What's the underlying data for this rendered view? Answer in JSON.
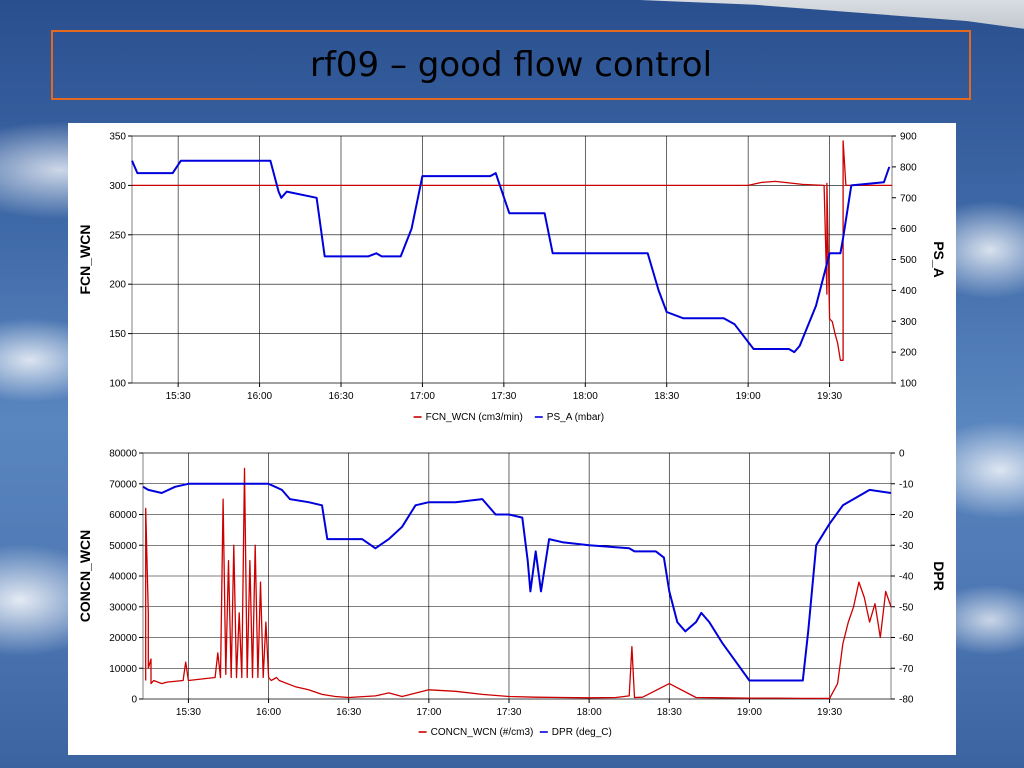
{
  "slide": {
    "title": "rf09 – good flow control"
  },
  "colors": {
    "series_red": "#cc0000",
    "series_blue": "#0000dd",
    "title_border": "#e2691d"
  },
  "chart_data": [
    {
      "type": "line",
      "xlim": [
        "15:13",
        "19:53"
      ],
      "x_ticks": [
        "15:30",
        "16:00",
        "16:30",
        "17:00",
        "17:30",
        "18:00",
        "18:30",
        "19:00",
        "19:30"
      ],
      "ylabel_left": "FCN_WCN",
      "ylabel_right": "PS_A",
      "ylim_left": [
        100,
        350
      ],
      "ylim_right": [
        100,
        900
      ],
      "y_ticks_left": [
        "100",
        "150",
        "200",
        "250",
        "300",
        "350"
      ],
      "y_ticks_right": [
        "100",
        "200",
        "300",
        "400",
        "500",
        "600",
        "700",
        "800",
        "900"
      ],
      "grid": true,
      "legend_position": "bottom",
      "series": [
        {
          "name": "FCN_WCN (cm3/min)",
          "axis": "left",
          "color": "#cc0000",
          "x": [
            "15:13",
            "15:40",
            "16:00",
            "16:30",
            "17:00",
            "17:30",
            "18:00",
            "18:30",
            "19:00",
            "19:05",
            "19:10",
            "19:20",
            "19:28",
            "19:29",
            "19:29",
            "19:30",
            "19:31",
            "19:32",
            "19:33",
            "19:34",
            "19:35",
            "19:35",
            "19:36",
            "19:37",
            "19:40",
            "19:53"
          ],
          "y": [
            300,
            300,
            300,
            300,
            300,
            300,
            300,
            300,
            300,
            303,
            304,
            301,
            300,
            190,
            302,
            165,
            162,
            150,
            140,
            123,
            123,
            345,
            300,
            300,
            300,
            300
          ]
        },
        {
          "name": "PS_A (mbar)",
          "axis": "right",
          "color": "#0000dd",
          "x": [
            "15:13",
            "15:15",
            "15:28",
            "15:31",
            "16:04",
            "16:07",
            "16:08",
            "16:10",
            "16:21",
            "16:24",
            "16:40",
            "16:43",
            "16:45",
            "16:52",
            "16:56",
            "17:00",
            "17:25",
            "17:27",
            "17:32",
            "17:45",
            "17:48",
            "18:23",
            "18:27",
            "18:30",
            "18:36",
            "18:51",
            "18:55",
            "19:02",
            "19:15",
            "19:17",
            "19:19",
            "19:25",
            "19:30",
            "19:34",
            "19:35",
            "19:38",
            "19:50",
            "19:52"
          ],
          "y": [
            820,
            780,
            780,
            820,
            820,
            720,
            700,
            720,
            700,
            510,
            510,
            520,
            510,
            510,
            600,
            770,
            770,
            780,
            650,
            650,
            520,
            520,
            400,
            330,
            310,
            310,
            290,
            210,
            210,
            200,
            220,
            350,
            520,
            520,
            570,
            740,
            750,
            800
          ]
        }
      ]
    },
    {
      "type": "line",
      "xlim": [
        "15:13",
        "19:53"
      ],
      "x_ticks": [
        "15:30",
        "16:00",
        "16:30",
        "17:00",
        "17:30",
        "18:00",
        "18:30",
        "19:00",
        "19:30"
      ],
      "ylabel_left": "CONCN_WCN",
      "ylabel_right": "DPR",
      "ylim_left": [
        0,
        80000
      ],
      "ylim_right": [
        -80,
        0
      ],
      "y_ticks_left": [
        "0",
        "10000",
        "20000",
        "30000",
        "40000",
        "50000",
        "60000",
        "70000",
        "80000"
      ],
      "y_ticks_right": [
        "-80",
        "-70",
        "-60",
        "-50",
        "-40",
        "-30",
        "-20",
        "-10",
        "0"
      ],
      "grid": true,
      "legend_position": "bottom",
      "series": [
        {
          "name": "CONCN_WCN (#/cm3)",
          "axis": "left",
          "color": "#cc0000",
          "x": [
            "15:14",
            "15:14",
            "15:15",
            "15:15",
            "15:16",
            "15:16",
            "15:17",
            "15:20",
            "15:22",
            "15:28",
            "15:29",
            "15:30",
            "15:40",
            "15:41",
            "15:42",
            "15:43",
            "15:44",
            "15:45",
            "15:46",
            "15:47",
            "15:48",
            "15:49",
            "15:50",
            "15:51",
            "15:52",
            "15:53",
            "15:54",
            "15:55",
            "15:56",
            "15:57",
            "15:58",
            "15:59",
            "16:00",
            "16:01",
            "16:02",
            "16:03",
            "16:04",
            "16:10",
            "16:15",
            "16:20",
            "16:25",
            "16:30",
            "16:40",
            "16:45",
            "16:50",
            "17:00",
            "17:10",
            "17:20",
            "17:30",
            "17:40",
            "17:50",
            "18:00",
            "18:10",
            "18:15",
            "18:16",
            "18:17",
            "18:20",
            "18:30",
            "18:40",
            "18:50",
            "19:00",
            "19:10",
            "19:20",
            "19:30",
            "19:33",
            "19:35",
            "19:37",
            "19:39",
            "19:41",
            "19:43",
            "19:45",
            "19:47",
            "19:49",
            "19:51",
            "19:53"
          ],
          "y": [
            6000,
            62000,
            28000,
            10000,
            13000,
            5000,
            6000,
            5000,
            5500,
            6000,
            12000,
            6000,
            7000,
            15000,
            7000,
            65000,
            8000,
            45000,
            7000,
            50000,
            7000,
            28000,
            7000,
            75000,
            7000,
            45000,
            7000,
            50000,
            7000,
            38000,
            7000,
            25000,
            7000,
            6000,
            6500,
            7000,
            6000,
            4000,
            3000,
            1500,
            800,
            500,
            1000,
            2000,
            800,
            3000,
            2500,
            1500,
            800,
            600,
            500,
            400,
            500,
            1000,
            17000,
            500,
            600,
            5000,
            500,
            400,
            300,
            300,
            200,
            200,
            5000,
            18000,
            25000,
            30000,
            38000,
            33000,
            25000,
            31000,
            20000,
            35000,
            30000
          ]
        },
        {
          "name": "DPR (deg_C)",
          "axis": "right",
          "color": "#0000dd",
          "x": [
            "15:13",
            "15:15",
            "15:20",
            "15:25",
            "15:30",
            "15:40",
            "15:50",
            "16:00",
            "16:05",
            "16:08",
            "16:15",
            "16:20",
            "16:22",
            "16:25",
            "16:30",
            "16:35",
            "16:40",
            "16:45",
            "16:50",
            "16:55",
            "17:00",
            "17:10",
            "17:20",
            "17:25",
            "17:30",
            "17:35",
            "17:37",
            "17:38",
            "17:40",
            "17:42",
            "17:45",
            "17:50",
            "18:00",
            "18:15",
            "18:17",
            "18:20",
            "18:25",
            "18:28",
            "18:30",
            "18:33",
            "18:36",
            "18:40",
            "18:42",
            "18:45",
            "18:50",
            "18:55",
            "19:00",
            "19:05",
            "19:10",
            "19:20",
            "19:22",
            "19:25",
            "19:30",
            "19:35",
            "19:45",
            "19:53"
          ],
          "y": [
            -11,
            -12,
            -13,
            -11,
            -10,
            -10,
            -10,
            -10,
            -12,
            -15,
            -16,
            -17,
            -28,
            -28,
            -28,
            -28,
            -31,
            -28,
            -24,
            -17,
            -16,
            -16,
            -15,
            -20,
            -20,
            -21,
            -35,
            -45,
            -32,
            -45,
            -28,
            -29,
            -30,
            -31,
            -32,
            -32,
            -32,
            -34,
            -45,
            -55,
            -58,
            -55,
            -52,
            -55,
            -62,
            -68,
            -74,
            -74,
            -74,
            -74,
            -58,
            -30,
            -23,
            -17,
            -12,
            -13
          ]
        }
      ]
    }
  ]
}
